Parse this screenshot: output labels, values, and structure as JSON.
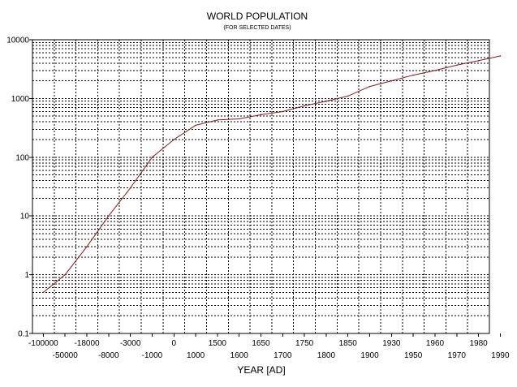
{
  "chart_data": {
    "type": "line",
    "title": "WORLD POPULATION",
    "subtitle": "(FOR SELECTED DATES)",
    "xlabel": "YEAR [AD]",
    "ylabel": "",
    "y_scale": "log",
    "ylim": [
      0.1,
      10000
    ],
    "y_tick_labels": [
      "10000",
      "1000",
      "100",
      "10",
      "1",
      "0.1"
    ],
    "x_categories": [
      "-100000",
      "-50000",
      "-18000",
      "-8000",
      "-3000",
      "-1000",
      "0",
      "1000",
      "1500",
      "1600",
      "1650",
      "1700",
      "1750",
      "1800",
      "1850",
      "1900",
      "1930",
      "1950",
      "1960",
      "1970",
      "1980",
      "1990"
    ],
    "grid": true,
    "legend": "none",
    "series": [
      {
        "color": "#8b1a1a",
        "values": [
          0.5,
          1,
          3,
          10,
          30,
          100,
          200,
          350,
          430,
          450,
          530,
          600,
          750,
          900,
          1100,
          1600,
          2000,
          2500,
          3000,
          3700,
          4400,
          5300
        ]
      }
    ]
  }
}
